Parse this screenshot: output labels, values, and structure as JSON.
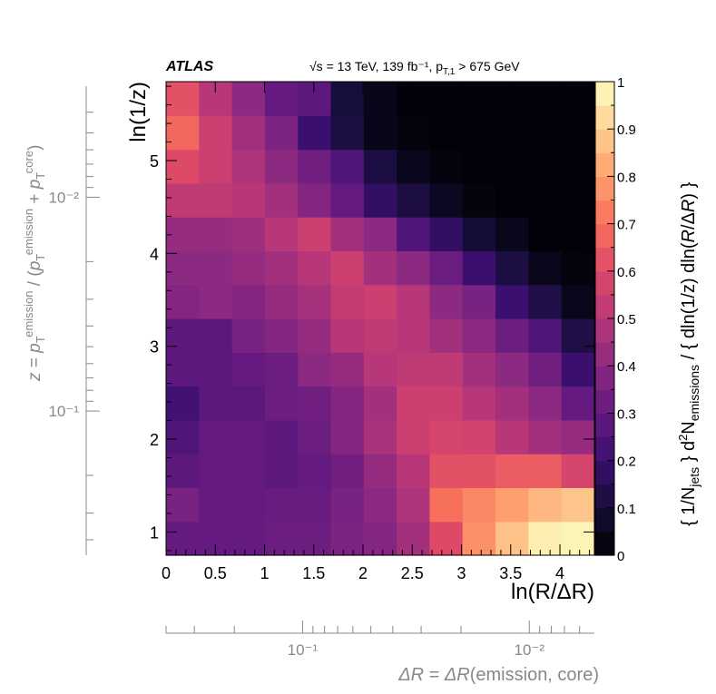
{
  "chart_data": {
    "type": "heatmap",
    "experiment": "ATLAS",
    "energy_label": "√s = 13 TeV, 139 fb⁻¹, p",
    "energy_sub": "T,1",
    "energy_tail": " > 675 GeV",
    "xlabel": "ln(R/ΔR)",
    "ylabel": "ln(1/z)",
    "zlabel": "{ 1/N_jets } d²N_emissions / { dln(1/z) dln(R/ΔR) }",
    "xlim": [
      0,
      4.35
    ],
    "ylim": [
      0.75,
      5.85
    ],
    "x_ticks": [
      "0",
      "0.5",
      "1",
      "1.5",
      "2",
      "2.5",
      "3",
      "3.5",
      "4"
    ],
    "y_ticks": [
      "1",
      "2",
      "3",
      "4",
      "5"
    ],
    "z_ticks": [
      "0",
      "0.1",
      "0.2",
      "0.3",
      "0.4",
      "0.5",
      "0.6",
      "0.7",
      "0.8",
      "0.9",
      "1"
    ],
    "zlim": [
      0,
      1
    ],
    "secondary_x": {
      "label": "ΔR = ΔR(emission, core)",
      "tick_labels": [
        "10⁻¹",
        "10⁻²"
      ]
    },
    "secondary_y": {
      "label": "z = p_T^emission / (p_T^emission + p_T^core)",
      "tick_labels": [
        "10⁻²",
        "10⁻¹"
      ]
    },
    "x_bins": 13,
    "y_bins": 14,
    "values": [
      [
        0.3,
        0.3,
        0.3,
        0.32,
        0.32,
        0.36,
        0.38,
        0.45,
        0.6,
        0.77,
        0.87,
        0.97,
        0.98
      ],
      [
        0.35,
        0.3,
        0.3,
        0.31,
        0.31,
        0.35,
        0.4,
        0.48,
        0.7,
        0.75,
        0.8,
        0.85,
        0.88
      ],
      [
        0.28,
        0.3,
        0.3,
        0.28,
        0.3,
        0.33,
        0.42,
        0.5,
        0.62,
        0.62,
        0.65,
        0.65,
        0.58
      ],
      [
        0.25,
        0.3,
        0.3,
        0.28,
        0.32,
        0.38,
        0.47,
        0.55,
        0.58,
        0.57,
        0.5,
        0.45,
        0.42
      ],
      [
        0.22,
        0.28,
        0.28,
        0.32,
        0.33,
        0.38,
        0.45,
        0.55,
        0.55,
        0.5,
        0.45,
        0.4,
        0.3
      ],
      [
        0.28,
        0.28,
        0.3,
        0.32,
        0.4,
        0.42,
        0.5,
        0.52,
        0.52,
        0.45,
        0.4,
        0.33,
        0.2
      ],
      [
        0.28,
        0.28,
        0.35,
        0.38,
        0.42,
        0.5,
        0.52,
        0.5,
        0.45,
        0.4,
        0.32,
        0.25,
        0.13
      ],
      [
        0.38,
        0.4,
        0.38,
        0.42,
        0.46,
        0.53,
        0.55,
        0.5,
        0.4,
        0.35,
        0.2,
        0.13,
        0.05
      ],
      [
        0.4,
        0.4,
        0.42,
        0.45,
        0.5,
        0.55,
        0.45,
        0.4,
        0.32,
        0.2,
        0.12,
        0.05,
        0.02
      ],
      [
        0.42,
        0.42,
        0.44,
        0.5,
        0.55,
        0.45,
        0.4,
        0.25,
        0.18,
        0.1,
        0.05,
        0.01,
        0.01
      ],
      [
        0.52,
        0.52,
        0.5,
        0.45,
        0.38,
        0.3,
        0.18,
        0.12,
        0.06,
        0.02,
        0.01,
        0.01,
        0.01
      ],
      [
        0.6,
        0.55,
        0.48,
        0.4,
        0.33,
        0.25,
        0.12,
        0.05,
        0.02,
        0.01,
        0.01,
        0.01,
        0.01
      ],
      [
        0.68,
        0.55,
        0.45,
        0.36,
        0.2,
        0.12,
        0.04,
        0.02,
        0.01,
        0.01,
        0.01,
        0.01,
        0.01
      ],
      [
        0.62,
        0.5,
        0.4,
        0.3,
        0.28,
        0.11,
        0.04,
        0.01,
        0.01,
        0.01,
        0.01,
        0.01,
        0.01
      ]
    ],
    "colorscale": [
      "#000004",
      "#140e36",
      "#3b0f70",
      "#641a80",
      "#8c2981",
      "#b73779",
      "#de4968",
      "#f7705c",
      "#fe9f6d",
      "#fecf92",
      "#fcfdbf"
    ]
  }
}
